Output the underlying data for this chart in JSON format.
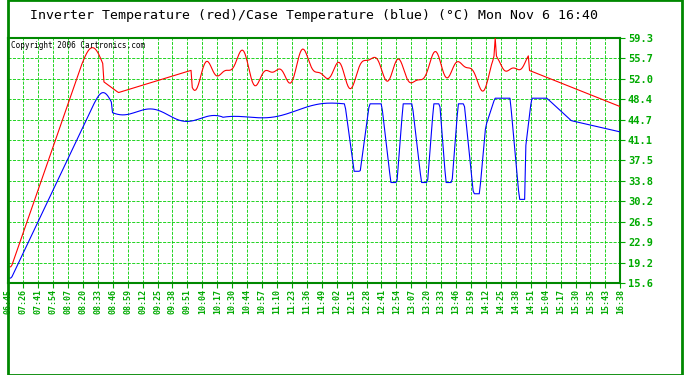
{
  "title": "Inverter Temperature (red)/Case Temperature (blue) (°C) Mon Nov 6 16:40",
  "copyright": "Copyright 2006 Cartronics.com",
  "plot_bg_color": "#ffffff",
  "fig_bg_color": "#ffffff",
  "grid_color": "#00cc00",
  "ytick_color": "#00aa00",
  "xtick_color": "#00aa00",
  "title_color": "#000000",
  "border_color": "#008800",
  "red_line_color": "#ff0000",
  "blue_line_color": "#0000ff",
  "y_min": 15.6,
  "y_max": 59.3,
  "yticks": [
    15.6,
    19.2,
    22.9,
    26.5,
    30.2,
    33.8,
    37.5,
    41.1,
    44.7,
    48.4,
    52.0,
    55.7,
    59.3
  ],
  "time_labels": [
    "06:45",
    "07:26",
    "07:41",
    "07:54",
    "08:07",
    "08:20",
    "08:33",
    "08:46",
    "08:59",
    "09:12",
    "09:25",
    "09:38",
    "09:51",
    "10:04",
    "10:17",
    "10:30",
    "10:44",
    "10:57",
    "11:10",
    "11:23",
    "11:36",
    "11:49",
    "12:02",
    "12:15",
    "12:28",
    "12:41",
    "12:54",
    "13:07",
    "13:20",
    "13:33",
    "13:46",
    "13:59",
    "14:12",
    "14:25",
    "14:38",
    "14:51",
    "15:04",
    "15:17",
    "15:30",
    "15:35",
    "15:43",
    "16:38"
  ]
}
